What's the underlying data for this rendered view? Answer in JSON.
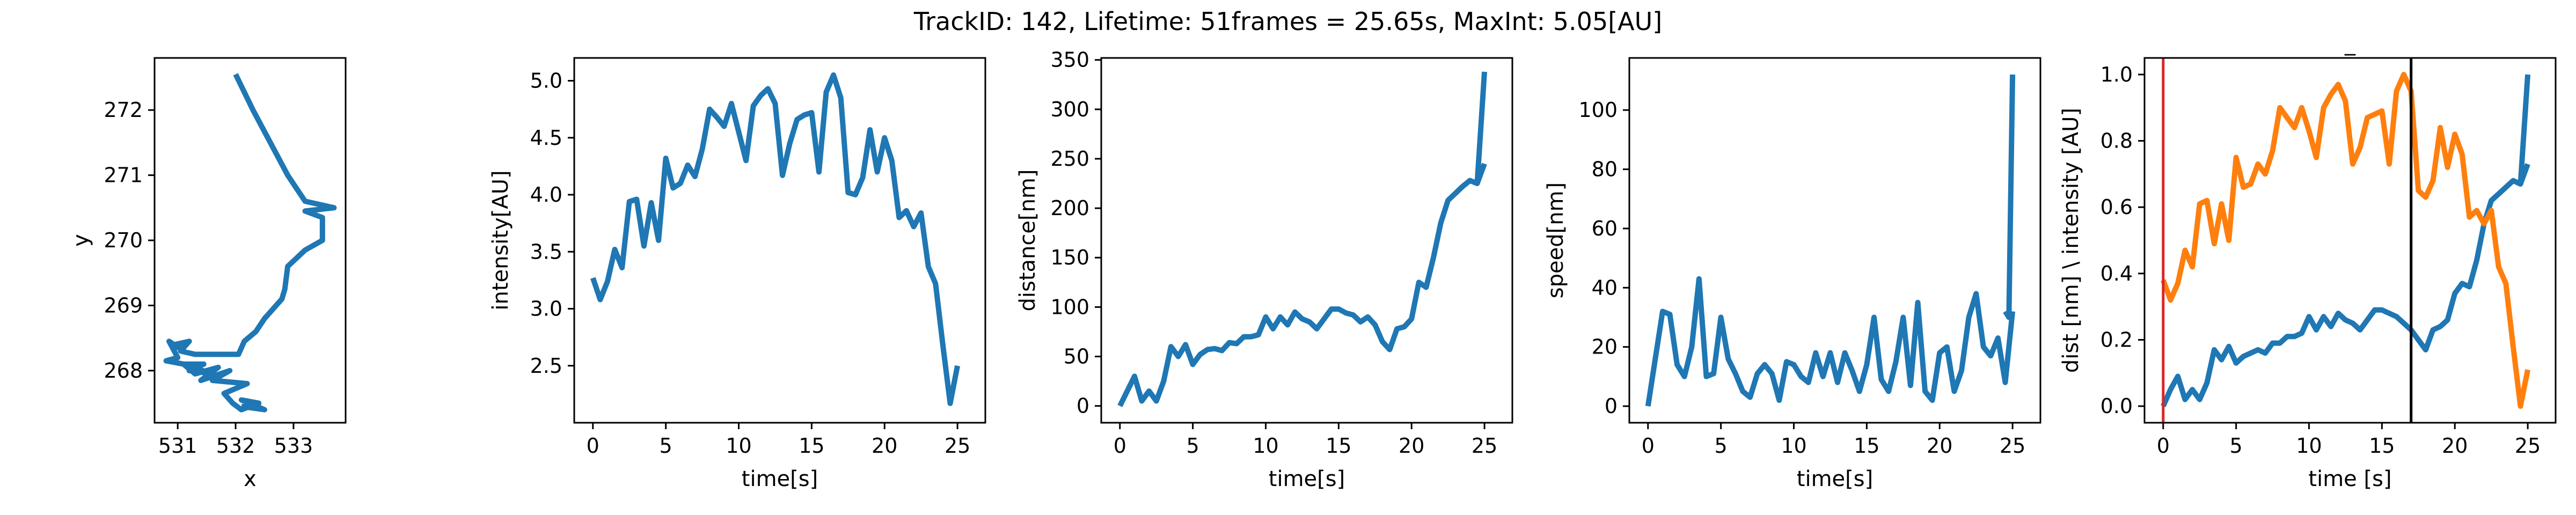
{
  "figure": {
    "title": "TrackID: 142, Lifetime: 51frames = 25.65s, MaxInt: 5.05[AU]"
  },
  "colors": {
    "blue": "#1f77b4",
    "orange": "#ff7f0e",
    "red": "#d62728",
    "black": "#000000"
  },
  "chart_data": [
    {
      "id": "trajectory",
      "type": "line",
      "title": "",
      "xlabel": "x",
      "ylabel": "y",
      "xlim": [
        530.6,
        533.9
      ],
      "ylim": [
        267.2,
        272.8
      ],
      "xticks": [
        531,
        532,
        533
      ],
      "yticks": [
        268,
        269,
        270,
        271,
        272
      ],
      "series": [
        {
          "color": "blue",
          "points": [
            [
              532.0,
              272.55
            ],
            [
              532.3,
              272.0
            ],
            [
              532.6,
              271.5
            ],
            [
              532.9,
              271.0
            ],
            [
              533.2,
              270.6
            ],
            [
              533.7,
              270.5
            ],
            [
              533.2,
              270.45
            ],
            [
              533.5,
              270.35
            ],
            [
              533.5,
              270.0
            ],
            [
              533.2,
              269.85
            ],
            [
              532.9,
              269.6
            ],
            [
              532.85,
              269.25
            ],
            [
              532.8,
              269.1
            ],
            [
              532.5,
              268.8
            ],
            [
              532.35,
              268.6
            ],
            [
              532.15,
              268.45
            ],
            [
              532.05,
              268.25
            ],
            [
              531.3,
              268.25
            ],
            [
              531.05,
              268.3
            ],
            [
              531.2,
              268.45
            ],
            [
              530.95,
              268.4
            ],
            [
              531.1,
              268.3
            ],
            [
              530.85,
              268.45
            ],
            [
              531.0,
              268.2
            ],
            [
              530.8,
              268.15
            ],
            [
              531.1,
              268.1
            ],
            [
              531.45,
              268.1
            ],
            [
              531.2,
              268.0
            ],
            [
              531.6,
              267.95
            ],
            [
              531.1,
              268.1
            ],
            [
              531.3,
              267.95
            ],
            [
              531.7,
              268.05
            ],
            [
              531.4,
              267.85
            ],
            [
              531.9,
              268.0
            ],
            [
              531.6,
              267.85
            ],
            [
              532.2,
              267.8
            ],
            [
              531.8,
              267.65
            ],
            [
              531.95,
              267.5
            ],
            [
              532.1,
              267.4
            ],
            [
              532.4,
              267.5
            ],
            [
              532.1,
              267.55
            ],
            [
              532.5,
              267.4
            ],
            [
              532.1,
              267.45
            ]
          ]
        }
      ]
    },
    {
      "id": "intensity",
      "type": "line",
      "title": "",
      "xlabel": "time[s]",
      "ylabel": "intensity[AU]",
      "xlim": [
        -1.28,
        26.91
      ],
      "ylim": [
        2.0,
        5.2
      ],
      "xticks": [
        0,
        5,
        10,
        15,
        20,
        25
      ],
      "yticks": [
        2.5,
        3.0,
        3.5,
        4.0,
        4.5,
        5.0
      ],
      "series": [
        {
          "color": "blue",
          "x": [
            0,
            0.5,
            1,
            1.5,
            2,
            2.5,
            3,
            3.5,
            4,
            4.5,
            5,
            5.5,
            6,
            6.5,
            7,
            7.5,
            8,
            8.5,
            9,
            9.5,
            10,
            10.5,
            11,
            11.5,
            12,
            12.5,
            13,
            13.5,
            14,
            14.5,
            15,
            15.5,
            16,
            16.5,
            17,
            17.5,
            18,
            18.5,
            19,
            19.5,
            20,
            20.5,
            21,
            21.5,
            22,
            22.5,
            23,
            23.5,
            24,
            24.5,
            25
          ],
          "y": [
            3.27,
            3.08,
            3.24,
            3.52,
            3.36,
            3.94,
            3.96,
            3.55,
            3.93,
            3.6,
            4.32,
            4.06,
            4.1,
            4.26,
            4.16,
            4.4,
            4.75,
            4.68,
            4.6,
            4.8,
            4.55,
            4.3,
            4.78,
            4.87,
            4.93,
            4.8,
            4.17,
            4.45,
            4.66,
            4.7,
            4.72,
            4.2,
            4.9,
            5.05,
            4.85,
            4.02,
            4.0,
            4.15,
            4.57,
            4.2,
            4.5,
            4.3,
            3.8,
            3.86,
            3.72,
            3.84,
            3.37,
            3.22,
            2.68,
            2.17,
            2.5
          ]
        }
      ]
    },
    {
      "id": "distance",
      "type": "line",
      "title": "",
      "xlabel": "time[s]",
      "ylabel": "distance[nm]",
      "xlim": [
        -1.28,
        26.91
      ],
      "ylim": [
        -17,
        352
      ],
      "xticks": [
        0,
        5,
        10,
        15,
        20,
        25
      ],
      "yticks": [
        0,
        50,
        100,
        150,
        200,
        250,
        300,
        350
      ],
      "series": [
        {
          "color": "blue",
          "x": [
            0,
            0.5,
            1,
            1.5,
            2,
            2.5,
            3,
            3.5,
            4,
            4.5,
            5,
            5.5,
            6,
            6.5,
            7,
            7.5,
            8,
            8.5,
            9,
            9.5,
            10,
            10.5,
            11,
            11.5,
            12,
            12.5,
            13,
            13.5,
            14,
            14.5,
            15,
            15.5,
            16,
            16.5,
            17,
            17.5,
            18,
            18.5,
            19,
            19.5,
            20,
            20.5,
            21,
            21.5,
            22,
            22.5,
            23,
            23.5,
            24,
            24.5,
            25
          ],
          "y": [
            0,
            15,
            30,
            5,
            15,
            5,
            25,
            60,
            50,
            62,
            42,
            52,
            57,
            58,
            56,
            64,
            63,
            70,
            70,
            72,
            90,
            78,
            90,
            82,
            95,
            88,
            85,
            78,
            88,
            98,
            98,
            94,
            92,
            85,
            90,
            82,
            65,
            57,
            78,
            80,
            88,
            125,
            120,
            150,
            185,
            208,
            215,
            222,
            228,
            225,
            245
          ]
        },
        {
          "color": "blue",
          "x": [
            24.5,
            25
          ],
          "y": [
            225,
            338
          ]
        }
      ]
    },
    {
      "id": "speed",
      "type": "line",
      "title": "",
      "xlabel": "time[s]",
      "ylabel": "speed[nm]",
      "xlim": [
        -1.28,
        26.91
      ],
      "ylim": [
        -5.6,
        117.6
      ],
      "xticks": [
        0,
        5,
        10,
        15,
        20,
        25
      ],
      "yticks": [
        0,
        20,
        40,
        60,
        80,
        100
      ],
      "series": [
        {
          "color": "blue",
          "x": [
            0,
            0.5,
            1,
            1.5,
            2,
            2.5,
            3,
            3.5,
            4,
            4.5,
            5,
            5.5,
            6,
            6.5,
            7,
            7.5,
            8,
            8.5,
            9,
            9.5,
            10,
            10.5,
            11,
            11.5,
            12,
            12.5,
            13,
            13.5,
            14,
            14.5,
            15,
            15.5,
            16,
            16.5,
            17,
            17.5,
            18,
            18.5,
            19,
            19.5,
            20,
            20.5,
            21,
            21.5,
            22,
            22.5,
            23,
            23.5,
            24,
            24.5,
            25
          ],
          "y": [
            0,
            16,
            32,
            31,
            14,
            10,
            20,
            43,
            10,
            11,
            30,
            16,
            11,
            5,
            3,
            11,
            14,
            11,
            2,
            15,
            14,
            10,
            8,
            18,
            10,
            18,
            8,
            18,
            12,
            5,
            14,
            30,
            9,
            5,
            15,
            30,
            7,
            35,
            5,
            2,
            18,
            20,
            5,
            12,
            30,
            38,
            20,
            17,
            23,
            8,
            32
          ]
        },
        {
          "color": "blue",
          "x": [
            24.5,
            24.75,
            25
          ],
          "y": [
            32,
            30,
            112
          ]
        }
      ]
    },
    {
      "id": "normalized",
      "type": "line",
      "title": "_",
      "xlabel": "time [s]",
      "ylabel": "dist [nm] \\ intensity [AU]",
      "xlim": [
        -1.28,
        26.91
      ],
      "ylim": [
        -0.05,
        1.05
      ],
      "xticks": [
        0,
        5,
        10,
        15,
        20,
        25
      ],
      "yticks": [
        0.0,
        0.2,
        0.4,
        0.6,
        0.8,
        1.0
      ],
      "vlines": [
        {
          "x": 0,
          "color": "red"
        },
        {
          "x": 17,
          "color": "black"
        }
      ],
      "series": [
        {
          "color": "blue",
          "x": [
            0,
            0.5,
            1,
            1.5,
            2,
            2.5,
            3,
            3.5,
            4,
            4.5,
            5,
            5.5,
            6,
            6.5,
            7,
            7.5,
            8,
            8.5,
            9,
            9.5,
            10,
            10.5,
            11,
            11.5,
            12,
            12.5,
            13,
            13.5,
            14,
            14.5,
            15,
            15.5,
            16,
            16.5,
            17,
            17.5,
            18,
            18.5,
            19,
            19.5,
            20,
            20.5,
            21,
            21.5,
            22,
            22.5,
            23,
            23.5,
            24,
            24.5,
            25
          ],
          "y": [
            0,
            0.05,
            0.09,
            0.02,
            0.05,
            0.02,
            0.07,
            0.17,
            0.14,
            0.18,
            0.13,
            0.15,
            0.16,
            0.17,
            0.16,
            0.19,
            0.19,
            0.21,
            0.21,
            0.22,
            0.27,
            0.23,
            0.27,
            0.24,
            0.28,
            0.26,
            0.25,
            0.23,
            0.26,
            0.29,
            0.29,
            0.28,
            0.27,
            0.25,
            0.23,
            0.2,
            0.17,
            0.23,
            0.24,
            0.26,
            0.34,
            0.37,
            0.36,
            0.44,
            0.55,
            0.62,
            0.64,
            0.66,
            0.68,
            0.67,
            0.73
          ]
        },
        {
          "color": "blue",
          "x": [
            24.5,
            25
          ],
          "y": [
            0.67,
            1.0
          ]
        },
        {
          "color": "orange",
          "x": [
            0,
            0.5,
            1,
            1.5,
            2,
            2.5,
            3,
            3.5,
            4,
            4.5,
            5,
            5.5,
            6,
            6.5,
            7,
            7.5,
            8,
            8.5,
            9,
            9.5,
            10,
            10.5,
            11,
            11.5,
            12,
            12.5,
            13,
            13.5,
            14,
            14.5,
            15,
            15.5,
            16,
            16.5,
            17,
            17.5,
            18,
            18.5,
            19,
            19.5,
            20,
            20.5,
            21,
            21.5,
            22,
            22.5,
            23,
            23.5,
            24,
            24.5,
            25
          ],
          "y": [
            0.38,
            0.32,
            0.37,
            0.47,
            0.42,
            0.61,
            0.62,
            0.49,
            0.61,
            0.5,
            0.75,
            0.66,
            0.67,
            0.73,
            0.7,
            0.77,
            0.9,
            0.87,
            0.84,
            0.9,
            0.83,
            0.75,
            0.9,
            0.94,
            0.97,
            0.92,
            0.73,
            0.78,
            0.87,
            0.88,
            0.89,
            0.73,
            0.95,
            1.0,
            0.95,
            0.65,
            0.63,
            0.68,
            0.84,
            0.72,
            0.82,
            0.76,
            0.57,
            0.59,
            0.55,
            0.59,
            0.42,
            0.37,
            0.18,
            0.0,
            0.11
          ]
        }
      ]
    }
  ]
}
